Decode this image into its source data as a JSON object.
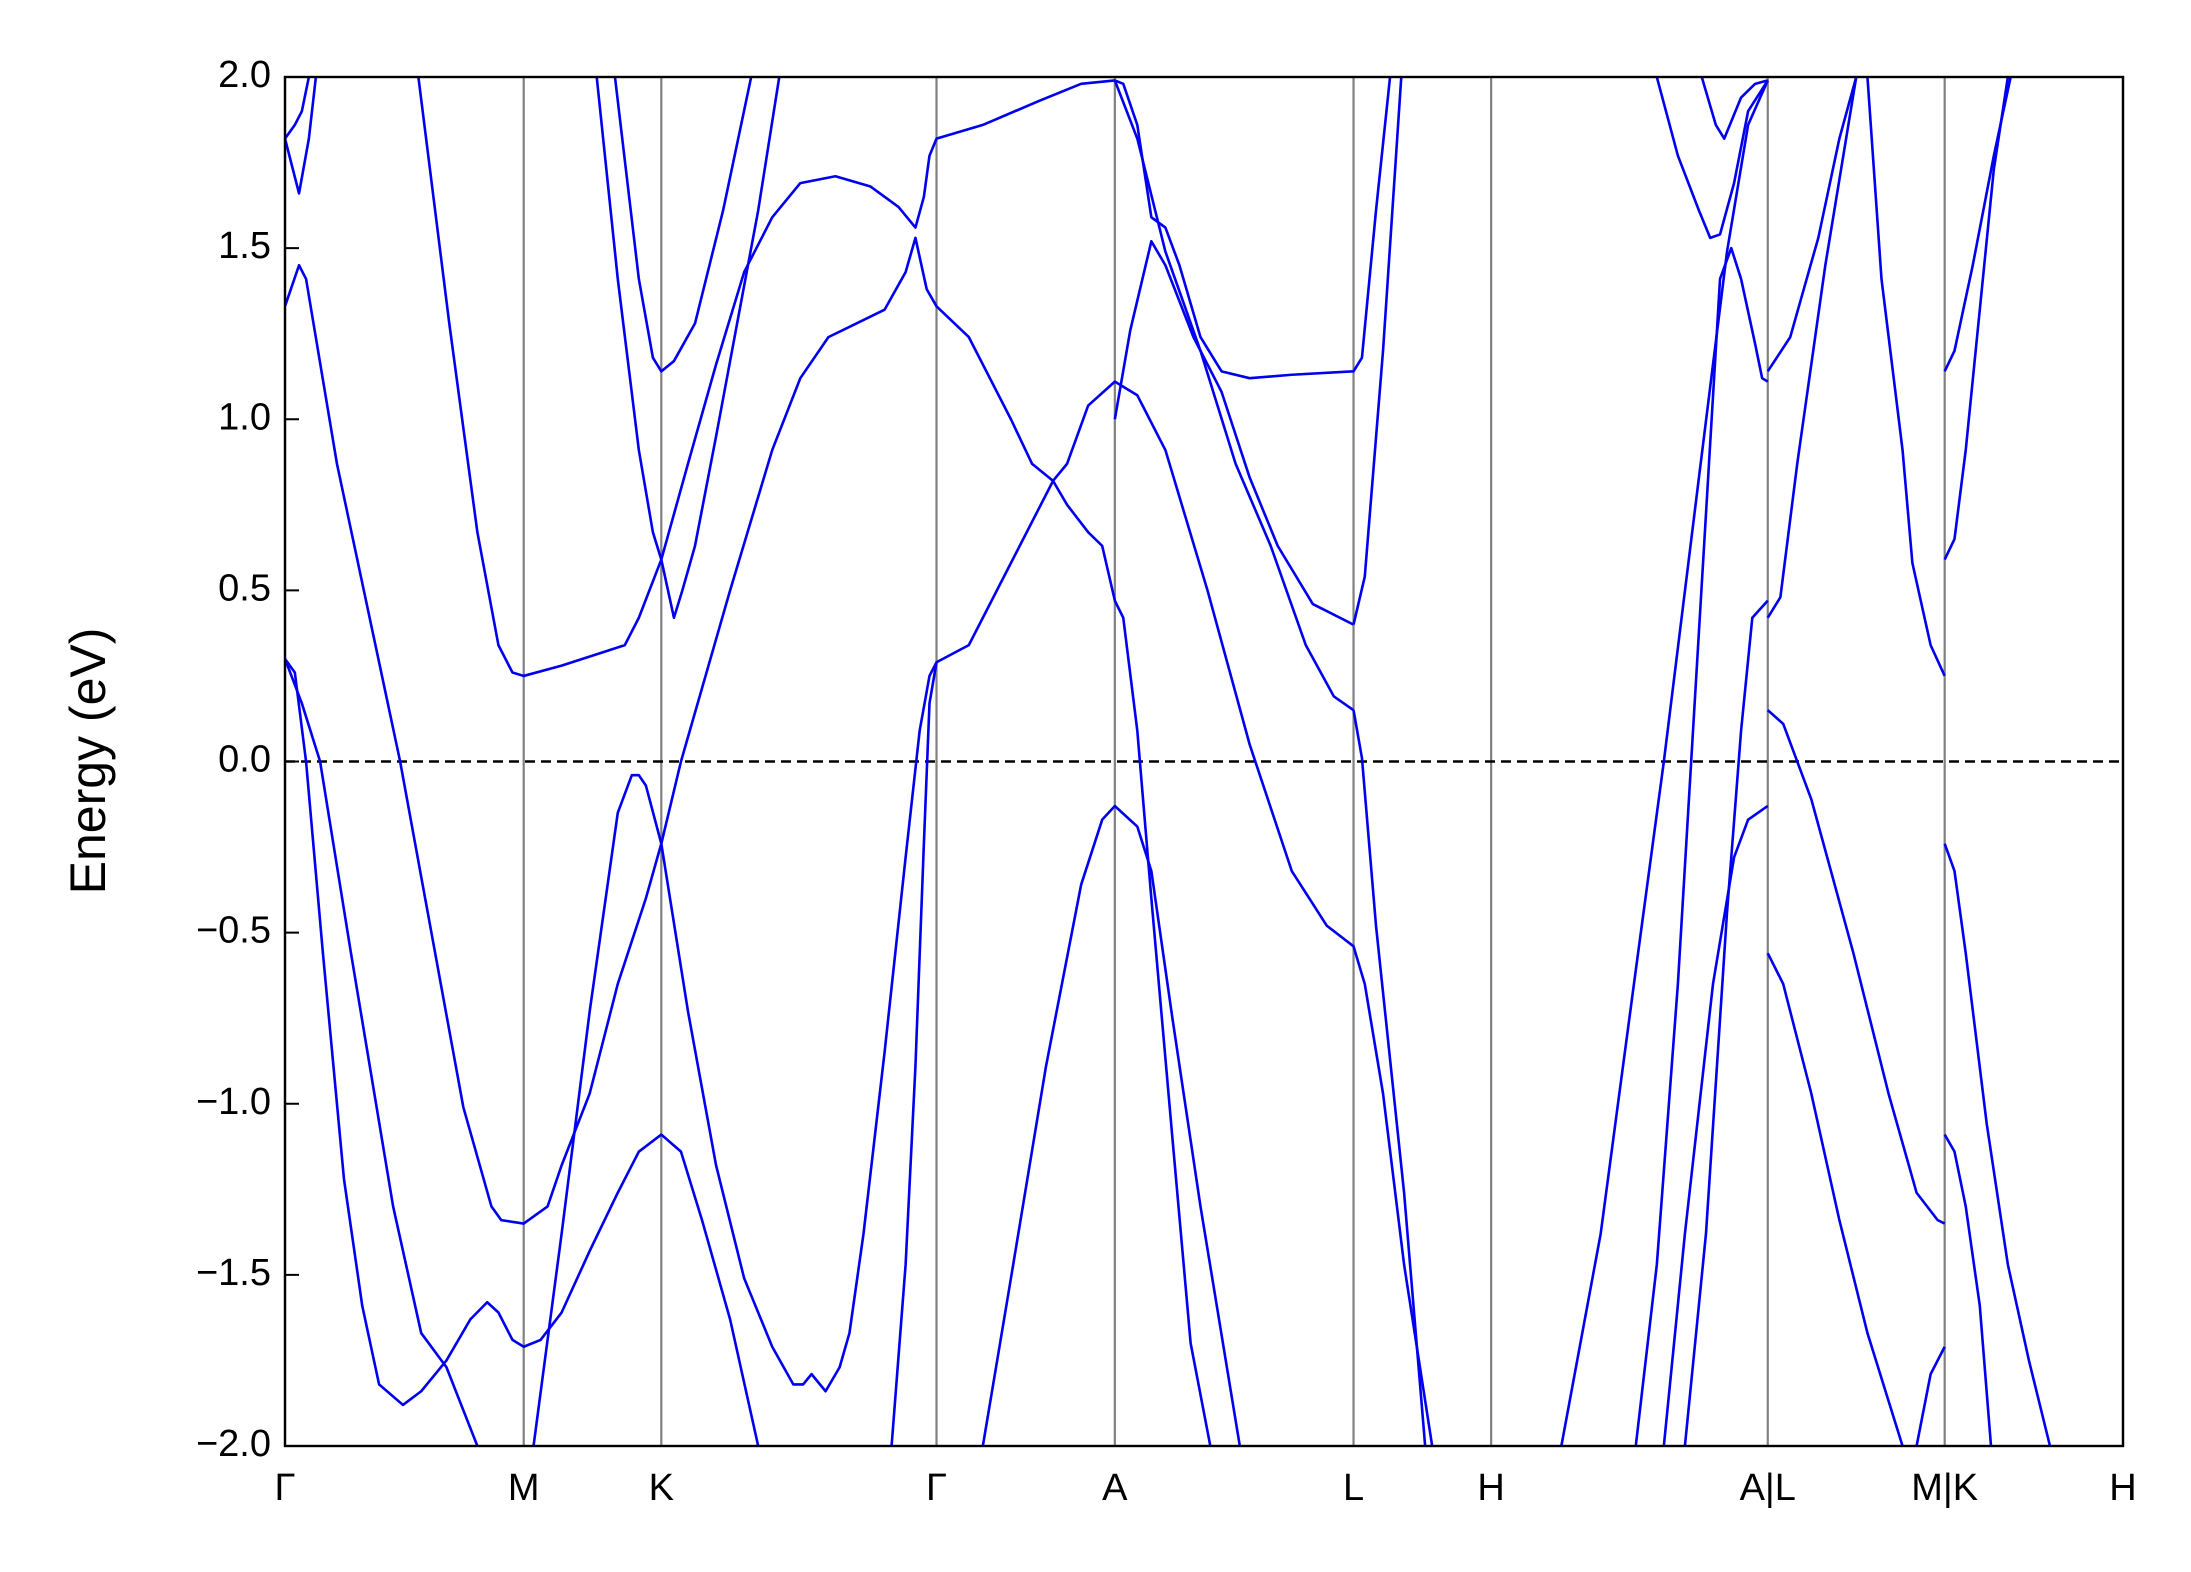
{
  "chart_data": {
    "type": "line",
    "ylabel": "Energy (eV)",
    "color": "#0000ee",
    "xlim": [
      0,
      13.09
    ],
    "ylim": [
      -2.0,
      2.0
    ],
    "xticks": [
      {
        "value": 0,
        "label": "Γ"
      },
      {
        "value": 1.7,
        "label": "M"
      },
      {
        "value": 2.68,
        "label": "K"
      },
      {
        "value": 4.64,
        "label": "Γ"
      },
      {
        "value": 5.91,
        "label": "A"
      },
      {
        "value": 7.61,
        "label": "L"
      },
      {
        "value": 8.59,
        "label": "H"
      },
      {
        "value": 10.56,
        "label": "A|L"
      },
      {
        "value": 11.82,
        "label": "M|K"
      },
      {
        "value": 13.09,
        "label": "H"
      }
    ],
    "yticks": [
      {
        "value": -2.0,
        "label": "−2.0"
      },
      {
        "value": -1.5,
        "label": "−1.5"
      },
      {
        "value": -1.0,
        "label": "−1.0"
      },
      {
        "value": -0.5,
        "label": "−0.5"
      },
      {
        "value": 0,
        "label": "0.0"
      },
      0.5,
      {
        "value": 1.0,
        "label": "1.0"
      },
      1.5,
      {
        "value": 2.0,
        "label": "2.0"
      }
    ],
    "xgrid": true,
    "grid_color": "#808080",
    "hline": {
      "y": 0,
      "style": "dashed"
    },
    "series": [
      {
        "x": [
          0,
          0.12,
          0.25,
          0.47,
          0.77,
          0.97,
          1.15,
          1.37
        ],
        "values": [
          0.3,
          0.17,
          0.0,
          -0.56,
          -1.3,
          -1.67,
          -1.77,
          -2.0
        ]
      },
      {
        "x": [
          0,
          0.07,
          0.15,
          0.27,
          0.42,
          0.55,
          0.67,
          0.84,
          0.97,
          1.15,
          1.32,
          1.44,
          1.52,
          1.62,
          1.7,
          1.82,
          1.97,
          2.17,
          2.37,
          2.52,
          2.68,
          2.82,
          2.97,
          3.17,
          3.37
        ],
        "values": [
          0.3,
          0.26,
          0.0,
          -0.56,
          -1.22,
          -1.59,
          -1.82,
          -1.88,
          -1.84,
          -1.75,
          -1.63,
          -1.58,
          -1.61,
          -1.69,
          -1.71,
          -1.69,
          -1.61,
          -1.43,
          -1.26,
          -1.14,
          -1.09,
          -1.14,
          -1.34,
          -1.63,
          -2.0
        ]
      },
      {
        "x": [
          0,
          0.1,
          0.15,
          0.37,
          0.82,
          1.27,
          1.47,
          1.54,
          1.7,
          1.87,
          1.97,
          2.17,
          2.37,
          2.57,
          2.68,
          2.82,
          3.17,
          3.47,
          3.67,
          3.87,
          4.07,
          4.27,
          4.42,
          4.49,
          4.57,
          4.64,
          4.87,
          5.17,
          5.32,
          5.47,
          5.57,
          5.72,
          5.82,
          5.91,
          5.97,
          6.07,
          6.17,
          6.32,
          6.45,
          6.59
        ],
        "values": [
          1.33,
          1.45,
          1.41,
          0.87,
          0.0,
          -1.01,
          -1.3,
          -1.34,
          -1.35,
          -1.3,
          -1.18,
          -0.97,
          -0.65,
          -0.4,
          -0.24,
          0.0,
          0.5,
          0.91,
          1.12,
          1.24,
          1.28,
          1.32,
          1.43,
          1.53,
          1.38,
          1.33,
          1.24,
          1.0,
          0.87,
          0.82,
          0.75,
          0.67,
          0.63,
          0.47,
          0.42,
          0.09,
          -0.4,
          -1.1,
          -1.7,
          -2.0
        ]
      },
      {
        "x": [
          0.95,
          1.17,
          1.37,
          1.52,
          1.62,
          1.7,
          1.97,
          2.27,
          2.42,
          2.52,
          2.68,
          2.87,
          3.07,
          3.27,
          3.47,
          3.67,
          3.92,
          4.17,
          4.37,
          4.49,
          4.55,
          4.59,
          4.64,
          4.97,
          5.37,
          5.67,
          5.91,
          5.97,
          6.07,
          6.17,
          6.27,
          6.37,
          6.52,
          6.67,
          6.87,
          7.17,
          7.61,
          7.67,
          7.77,
          7.87
        ],
        "values": [
          2.0,
          1.28,
          0.67,
          0.34,
          0.26,
          0.25,
          0.28,
          0.32,
          0.34,
          0.42,
          0.59,
          0.87,
          1.16,
          1.43,
          1.59,
          1.69,
          1.71,
          1.68,
          1.62,
          1.56,
          1.65,
          1.77,
          1.82,
          1.86,
          1.93,
          1.98,
          1.99,
          1.98,
          1.86,
          1.59,
          1.56,
          1.45,
          1.24,
          1.14,
          1.12,
          1.13,
          1.14,
          1.18,
          1.61,
          2.0
        ]
      },
      {
        "x": [
          0,
          0.1,
          0.17,
          0.22
        ],
        "values": [
          1.82,
          1.66,
          1.82,
          2.0
        ]
      },
      {
        "x": [
          0,
          0.07,
          0.12,
          0.17
        ],
        "values": [
          1.82,
          1.86,
          1.9,
          2.0
        ]
      },
      {
        "x": [
          2.22,
          2.37,
          2.52,
          2.62,
          2.68,
          2.77,
          2.83,
          2.92,
          3.07,
          3.22,
          3.37,
          3.52
        ],
        "values": [
          2.0,
          1.41,
          0.91,
          0.67,
          0.59,
          0.42,
          0.5,
          0.63,
          0.95,
          1.28,
          1.61,
          2.0
        ]
      },
      {
        "x": [
          2.35,
          2.52,
          2.62,
          2.68,
          2.77,
          2.92,
          3.12,
          3.32
        ],
        "values": [
          2.0,
          1.41,
          1.18,
          1.14,
          1.17,
          1.28,
          1.61,
          2.0
        ]
      },
      {
        "x": [
          1.77,
          1.97,
          2.17,
          2.37,
          2.47,
          2.52,
          2.57,
          2.68,
          2.87,
          3.07,
          3.27,
          3.47,
          3.62,
          3.69,
          3.75,
          3.85,
          3.95,
          4.02,
          4.12,
          4.27,
          4.42,
          4.52,
          4.59,
          4.64,
          4.87,
          5.17,
          5.47,
          5.57,
          5.72,
          5.91,
          6.07,
          6.27,
          6.57,
          6.87,
          7.17,
          7.42,
          7.61,
          7.69,
          7.82,
          7.97,
          8.17
        ],
        "values": [
          -2.0,
          -1.38,
          -0.73,
          -0.15,
          -0.04,
          -0.04,
          -0.07,
          -0.24,
          -0.73,
          -1.18,
          -1.51,
          -1.71,
          -1.82,
          -1.82,
          -1.79,
          -1.84,
          -1.77,
          -1.67,
          -1.38,
          -0.85,
          -0.28,
          0.09,
          0.25,
          0.29,
          0.34,
          0.58,
          0.82,
          0.87,
          1.04,
          1.11,
          1.07,
          0.91,
          0.5,
          0.05,
          -0.32,
          -0.48,
          -0.54,
          -0.65,
          -0.97,
          -1.47,
          -2.0
        ]
      },
      {
        "x": [
          4.32,
          4.42,
          4.49,
          4.55,
          4.59,
          4.64
        ],
        "values": [
          -2.0,
          -1.47,
          -0.89,
          -0.24,
          0.17,
          0.29
        ]
      },
      {
        "x": [
          4.97,
          5.17,
          5.42,
          5.67,
          5.82,
          5.91,
          6.07,
          6.17,
          6.32,
          6.52,
          6.8
        ],
        "values": [
          -2.0,
          -1.51,
          -0.89,
          -0.36,
          -0.17,
          -0.13,
          -0.19,
          -0.32,
          -0.75,
          -1.3,
          -2.0
        ]
      },
      {
        "x": [
          5.91,
          6.02,
          6.17,
          6.27,
          6.47,
          6.67,
          6.87,
          7.07,
          7.32,
          7.61
        ],
        "values": [
          1.0,
          1.26,
          1.52,
          1.45,
          1.24,
          1.08,
          0.83,
          0.63,
          0.46,
          0.4
        ]
      },
      {
        "x": [
          5.91,
          6.07,
          6.27,
          6.52,
          6.77,
          7.02,
          7.27,
          7.47,
          7.61
        ],
        "values": [
          1.99,
          1.82,
          1.49,
          1.2,
          0.87,
          0.63,
          0.34,
          0.19,
          0.15
        ]
      },
      {
        "x": [
          7.61,
          7.69,
          7.82,
          7.95
        ],
        "values": [
          0.4,
          0.54,
          1.2,
          2.0
        ]
      },
      {
        "x": [
          7.61,
          7.67,
          7.77,
          7.97,
          8.12
        ],
        "values": [
          0.15,
          0.01,
          -0.48,
          -1.26,
          -2.0
        ]
      },
      {
        "x": [
          9.09,
          9.37,
          9.62,
          9.82,
          10.07,
          10.27,
          10.42,
          10.56
        ],
        "values": [
          -2.0,
          -1.38,
          -0.61,
          0.0,
          0.83,
          1.49,
          1.86,
          1.99
        ]
      },
      {
        "x": [
          9.62,
          9.77,
          9.92,
          10.07,
          10.22,
          10.3,
          10.37,
          10.47,
          10.52,
          10.56
        ],
        "values": [
          -2.0,
          -1.47,
          -0.65,
          0.38,
          1.41,
          1.5,
          1.41,
          1.22,
          1.12,
          1.11
        ]
      },
      {
        "x": [
          9.82,
          9.97,
          10.17,
          10.32,
          10.42,
          10.56
        ],
        "values": [
          -2.0,
          -1.38,
          -0.65,
          -0.28,
          -0.17,
          -0.13
        ]
      },
      {
        "x": [
          9.97,
          10.12,
          10.27,
          10.37,
          10.45,
          10.56
        ],
        "values": [
          -2.0,
          -1.38,
          -0.44,
          0.09,
          0.42,
          0.47
        ]
      },
      {
        "x": [
          9.77,
          9.92,
          10.07,
          10.15,
          10.22,
          10.32,
          10.42,
          10.56
        ],
        "values": [
          2.0,
          1.77,
          1.61,
          1.53,
          1.54,
          1.69,
          1.9,
          1.99
        ]
      },
      {
        "x": [
          10.09,
          10.19,
          10.25,
          10.37,
          10.47,
          10.56
        ],
        "values": [
          2.0,
          1.86,
          1.82,
          1.94,
          1.98,
          1.99
        ]
      },
      {
        "x": [
          10.56,
          10.72,
          10.92,
          11.07,
          11.19
        ],
        "values": [
          1.14,
          1.24,
          1.53,
          1.82,
          2.0
        ]
      },
      {
        "x": [
          10.56,
          10.65,
          10.77,
          10.97,
          11.19
        ],
        "values": [
          0.42,
          0.48,
          0.87,
          1.45,
          2.0
        ]
      },
      {
        "x": [
          10.56,
          10.67,
          10.87,
          11.17,
          11.42,
          11.62,
          11.77,
          11.82
        ],
        "values": [
          0.15,
          0.11,
          -0.11,
          -0.56,
          -0.97,
          -1.26,
          -1.34,
          -1.35
        ]
      },
      {
        "x": [
          10.56,
          10.67,
          10.87,
          11.07,
          11.27,
          11.52
        ],
        "values": [
          -0.56,
          -0.65,
          -0.97,
          -1.34,
          -1.67,
          -2.0
        ]
      },
      {
        "x": [
          11.27,
          11.37,
          11.52,
          11.59,
          11.72,
          11.82
        ],
        "values": [
          2.0,
          1.41,
          0.91,
          0.58,
          0.34,
          0.25
        ]
      },
      {
        "x": [
          11.82,
          11.89,
          12.02,
          12.17,
          12.29
        ],
        "values": [
          1.14,
          1.2,
          1.45,
          1.77,
          2.0
        ]
      },
      {
        "x": [
          11.82,
          11.89,
          11.97,
          12.07,
          12.17,
          12.27
        ],
        "values": [
          0.59,
          0.65,
          0.91,
          1.32,
          1.73,
          2.0
        ]
      },
      {
        "x": [
          11.82,
          11.89,
          11.97,
          12.12,
          12.27,
          12.42,
          12.57
        ],
        "values": [
          -0.24,
          -0.32,
          -0.56,
          -1.06,
          -1.47,
          -1.75,
          -2.0
        ]
      },
      {
        "x": [
          11.82,
          11.89,
          11.97,
          12.07,
          12.15
        ],
        "values": [
          -1.09,
          -1.14,
          -1.3,
          -1.59,
          -2.0
        ]
      },
      {
        "x": [
          11.62,
          11.72,
          11.82
        ],
        "values": [
          -2.0,
          -1.79,
          -1.71
        ]
      }
    ]
  }
}
